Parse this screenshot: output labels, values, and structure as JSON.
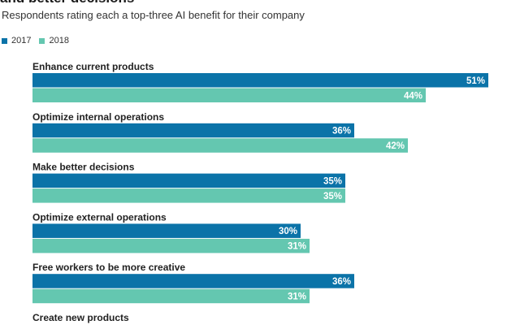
{
  "header": {
    "title": "and better decisions",
    "subtitle": "Respondents rating each a top-three AI benefit for their company"
  },
  "colors": {
    "s2017": "#0b73a8",
    "s2018": "#64c7b0"
  },
  "chart_data": {
    "type": "bar",
    "orientation": "horizontal",
    "title": "and better decisions",
    "subtitle": "Respondents rating each a top-three AI benefit for their company",
    "legend": "top-left",
    "categories": [
      "Enhance current products",
      "Optimize internal operations",
      "Make better decisions",
      "Optimize external operations",
      "Free workers to be more creative",
      "Create new products"
    ],
    "series": [
      {
        "name": "2017",
        "values": [
          51,
          36,
          35,
          30,
          36,
          null
        ],
        "labels": [
          "51%",
          "36%",
          "35%",
          "30%",
          "36%",
          ""
        ]
      },
      {
        "name": "2018",
        "values": [
          44,
          42,
          35,
          31,
          31,
          null
        ],
        "labels": [
          "44%",
          "42%",
          "35%",
          "31%",
          "31%",
          ""
        ]
      }
    ],
    "unit": "%",
    "xlim": [
      0,
      51
    ],
    "grid": false
  }
}
